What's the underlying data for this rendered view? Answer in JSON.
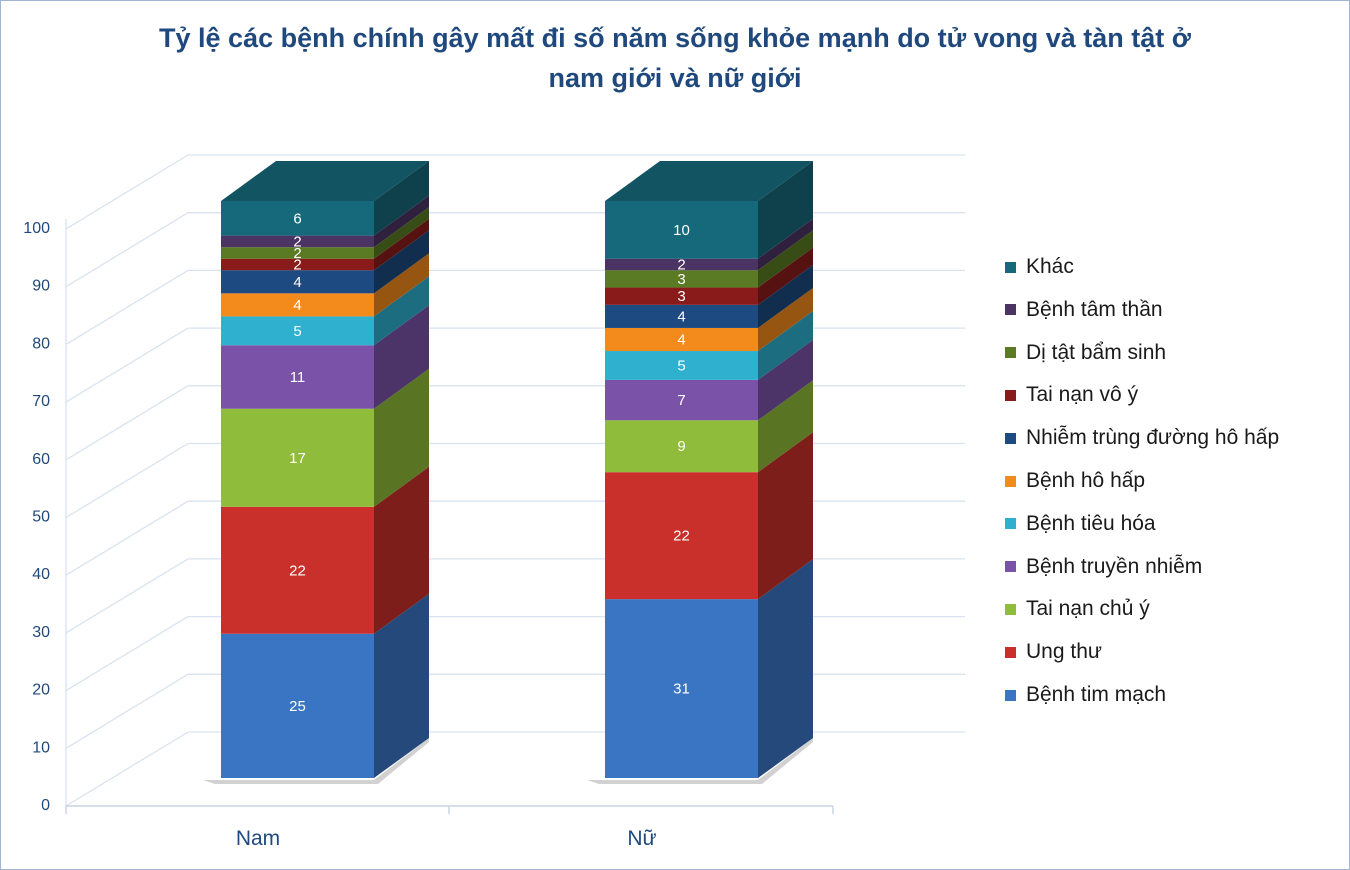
{
  "chart_data": {
    "type": "bar",
    "stacked": true,
    "three_d": true,
    "title": "Tỷ lệ các bệnh chính gây mất đi số năm sống khỏe mạnh do tử vong và tàn tật ở nam giới và nữ giới",
    "categories": [
      "Nam",
      "Nữ"
    ],
    "ylim": [
      0,
      100
    ],
    "yticks": [
      0,
      10,
      20,
      30,
      40,
      50,
      60,
      70,
      80,
      90,
      100
    ],
    "grid": true,
    "legend_position": "right",
    "series": [
      {
        "name": "Bệnh tim mạch",
        "values": [
          25,
          31
        ],
        "color": "#3a75c4"
      },
      {
        "name": "Ung thư",
        "values": [
          22,
          22
        ],
        "color": "#c9302c"
      },
      {
        "name": "Tai nạn chủ ý",
        "values": [
          17,
          9
        ],
        "color": "#8fbc3a"
      },
      {
        "name": "Bệnh truyền nhiễm",
        "values": [
          11,
          7
        ],
        "color": "#7a52a8"
      },
      {
        "name": "Bệnh tiêu hóa",
        "values": [
          5,
          5
        ],
        "color": "#2fb0cf"
      },
      {
        "name": "Bệnh hô hấp",
        "values": [
          4,
          4
        ],
        "color": "#f28a1c"
      },
      {
        "name": "Nhiễm trùng đường hô hấp",
        "values": [
          4,
          4
        ],
        "color": "#1d4a80"
      },
      {
        "name": "Tai nạn vô ý",
        "values": [
          2,
          3
        ],
        "color": "#8a1b1b"
      },
      {
        "name": "Dị tật bẩm sinh",
        "values": [
          2,
          3
        ],
        "color": "#5a7a24"
      },
      {
        "name": "Bệnh tâm thần",
        "values": [
          2,
          2
        ],
        "color": "#4b3364"
      },
      {
        "name": "Khác",
        "values": [
          6,
          10
        ],
        "color": "#16697a"
      }
    ]
  }
}
